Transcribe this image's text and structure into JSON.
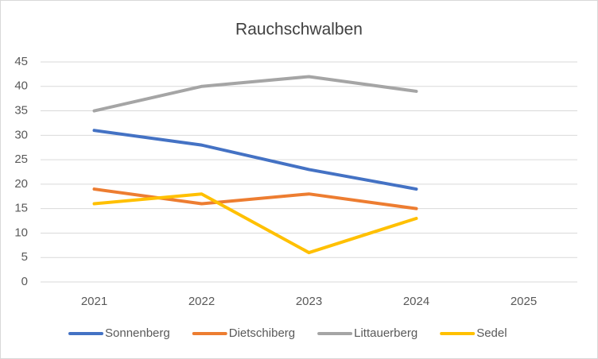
{
  "chart_data": {
    "type": "line",
    "title": "Rauchschwalben",
    "categories": [
      "2021",
      "2022",
      "2023",
      "2024",
      "2025"
    ],
    "series": [
      {
        "name": "Sonnenberg",
        "color": "#4472c4",
        "values": [
          31,
          28,
          23,
          19,
          null
        ]
      },
      {
        "name": "Dietschiberg",
        "color": "#ed7d31",
        "values": [
          19,
          16,
          18,
          15,
          null
        ]
      },
      {
        "name": "Littauerberg",
        "color": "#a5a5a5",
        "values": [
          35,
          40,
          42,
          39,
          null
        ]
      },
      {
        "name": "Sedel",
        "color": "#ffc000",
        "values": [
          16,
          18,
          6,
          13,
          null
        ]
      }
    ],
    "ylim": [
      0,
      45
    ],
    "yticks": [
      0,
      5,
      10,
      15,
      20,
      25,
      30,
      35,
      40,
      45
    ],
    "grid": true,
    "legend": "bottom"
  }
}
